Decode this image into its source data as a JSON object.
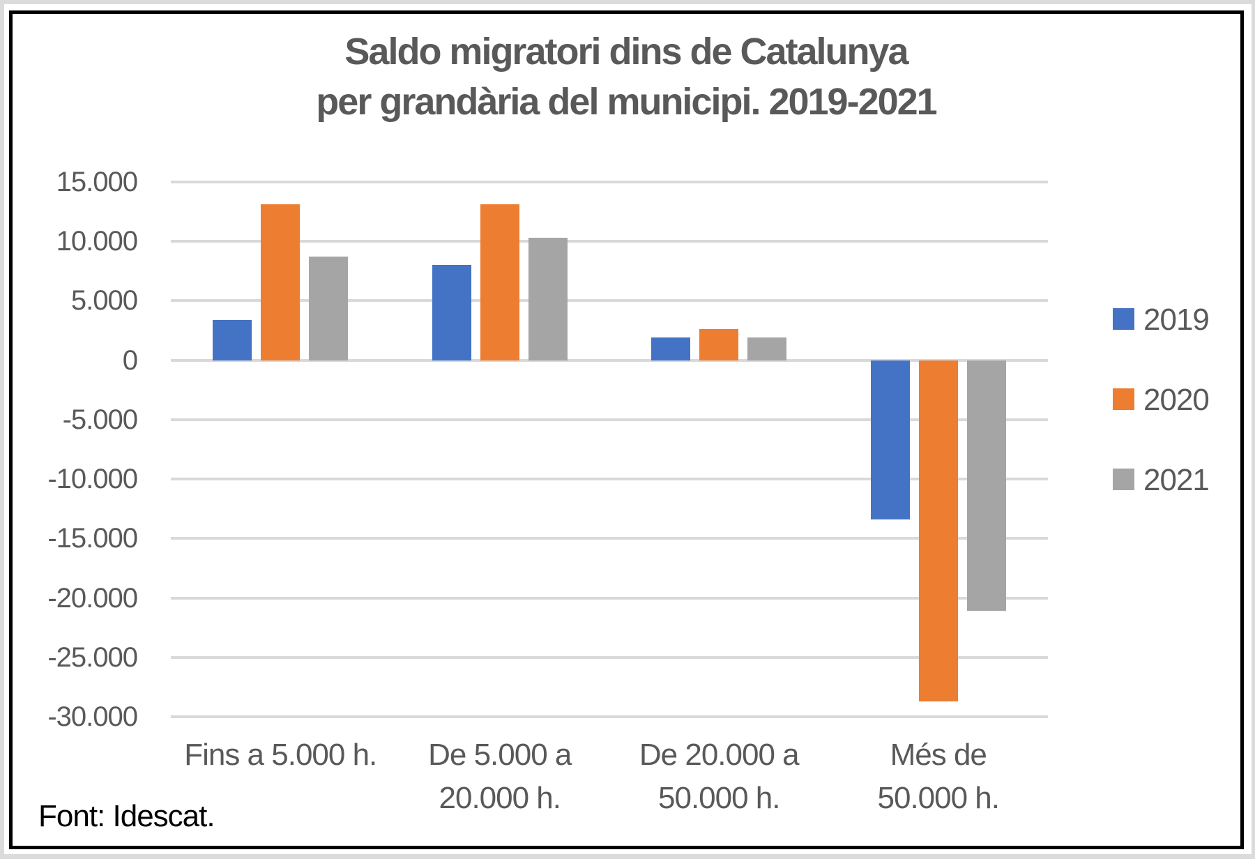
{
  "chart_data": {
    "type": "bar",
    "title": "Saldo migratori dins de Catalunya per grandària del municipi. 2019-2021",
    "title_lines": [
      "Saldo migratori dins de Catalunya",
      "per grandària del municipi. 2019-2021"
    ],
    "categories": [
      "Fins a 5.000 h.",
      "De 5.000 a 20.000 h.",
      "De 20.000 a 50.000 h.",
      "Més de 50.000 h."
    ],
    "category_label_lines": [
      [
        "Fins a 5.000 h."
      ],
      [
        "De 5.000 a",
        "20.000 h."
      ],
      [
        "De 20.000 a",
        "50.000 h."
      ],
      [
        "Més de",
        "50.000 h."
      ]
    ],
    "series": [
      {
        "name": "2019",
        "color": "#4472C4",
        "values": [
          3400,
          8000,
          1900,
          -13400
        ]
      },
      {
        "name": "2020",
        "color": "#ED7D31",
        "values": [
          13100,
          13100,
          2600,
          -28700
        ]
      },
      {
        "name": "2021",
        "color": "#A5A5A5",
        "values": [
          8700,
          10300,
          1900,
          -21100
        ]
      }
    ],
    "xlabel": "",
    "ylabel": "",
    "ylim": [
      -30000,
      15000
    ],
    "ytick_step": 5000,
    "ytick_labels": [
      "15.000",
      "10.000",
      "5.000",
      "0",
      "-5.000",
      "-10.000",
      "-15.000",
      "-20.000",
      "-25.000",
      "-30.000"
    ],
    "grid": true,
    "legend_position": "right",
    "legend_labels": [
      "2019",
      "2020",
      "2021"
    ]
  },
  "footer": {
    "source": "Font: Idescat."
  },
  "colors": {
    "page_background": "#DBDBDB",
    "chart_background": "#FFFFFF",
    "frame_border": "#000000",
    "gridline": "#D9D9D9",
    "text": "#595959",
    "credit_text": "#000000",
    "series_2019": "#4472C4",
    "series_2020": "#ED7D31",
    "series_2021": "#A5A5A5"
  }
}
